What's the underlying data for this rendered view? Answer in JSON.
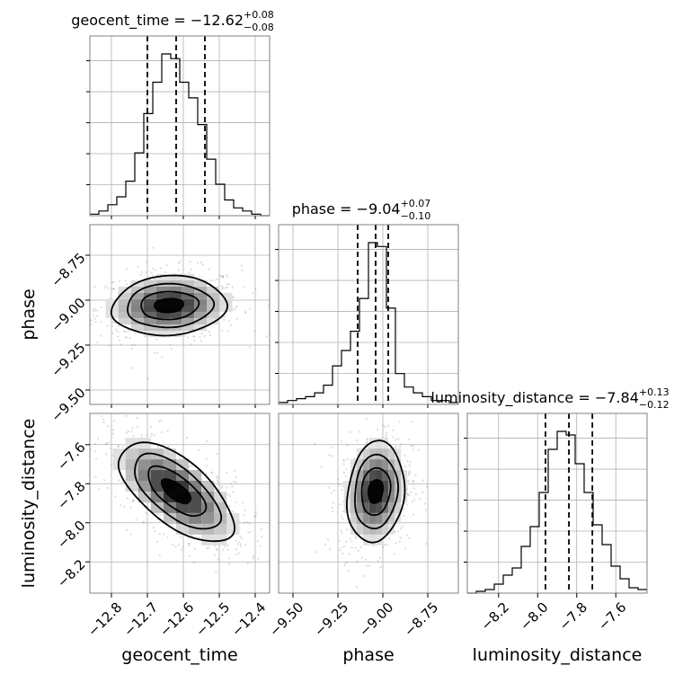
{
  "chart_data": {
    "type": "corner",
    "grid": true,
    "parameters": [
      "geocent_time",
      "phase",
      "luminosity_distance"
    ],
    "axis_labels": {
      "x": [
        "geocent_time",
        "phase",
        "luminosity_distance"
      ],
      "y": [
        "phase",
        "luminosity_distance"
      ]
    },
    "titles": [
      {
        "param": "geocent_time",
        "prefix": "geocent_time = ",
        "median": "−12.62",
        "plus": "+0.08",
        "minus": "−0.08"
      },
      {
        "param": "phase",
        "prefix": "phase = ",
        "median": "−9.04",
        "plus": "+0.07",
        "minus": "−0.10"
      },
      {
        "param": "luminosity_distance",
        "prefix": "luminosity_distance = ",
        "median": "−7.84",
        "plus": "+0.13",
        "minus": "−0.12"
      }
    ],
    "ranges": {
      "geocent_time": [
        -12.86,
        -12.36
      ],
      "phase": [
        -9.58,
        -8.58
      ],
      "luminosity_distance": [
        -8.36,
        -7.44
      ]
    },
    "ticks": {
      "geocent_time": {
        "values": [
          -12.8,
          -12.7,
          -12.6,
          -12.5,
          -12.4
        ],
        "labels": [
          "−12.8",
          "−12.7",
          "−12.6",
          "−12.5",
          "−12.4"
        ]
      },
      "phase_x": {
        "values": [
          -9.5,
          -9.25,
          -9.0,
          -8.75
        ],
        "labels": [
          "−9.50",
          "−9.25",
          "−9.00",
          "−8.75"
        ]
      },
      "phase_y": {
        "values": [
          -8.75,
          -9.0,
          -9.25,
          -9.5
        ],
        "labels": [
          "−8.75",
          "−9.00",
          "−9.25",
          "−9.50"
        ]
      },
      "luminosity_distance_x": {
        "values": [
          -8.2,
          -8.0,
          -7.8,
          -7.6
        ],
        "labels": [
          "−8.2",
          "−8.0",
          "−7.8",
          "−7.6"
        ]
      },
      "luminosity_distance_y": {
        "values": [
          -7.6,
          -7.8,
          -8.0,
          -8.2
        ],
        "labels": [
          "−7.6",
          "−7.8",
          "−8.0",
          "−8.2"
        ]
      }
    },
    "histograms": [
      {
        "param": "geocent_time",
        "bin_edges": [
          -12.86,
          -12.835,
          -12.81,
          -12.785,
          -12.76,
          -12.735,
          -12.71,
          -12.685,
          -12.66,
          -12.635,
          -12.61,
          -12.585,
          -12.56,
          -12.535,
          -12.51,
          -12.485,
          -12.46,
          -12.435,
          -12.41,
          -12.385,
          -12.36
        ],
        "counts": [
          1,
          3,
          7,
          12,
          22,
          40,
          65,
          85,
          103,
          100,
          85,
          75,
          58,
          36,
          20,
          10,
          5,
          3,
          1,
          0
        ],
        "quantiles": [
          -12.7,
          -12.62,
          -12.54
        ]
      },
      {
        "param": "phase",
        "bin_edges": [
          -9.58,
          -9.53,
          -9.48,
          -9.43,
          -9.38,
          -9.33,
          -9.28,
          -9.23,
          -9.18,
          -9.13,
          -9.08,
          -9.03,
          -8.98,
          -8.93,
          -8.88,
          -8.83,
          -8.78,
          -8.73,
          -8.68,
          -8.63,
          -8.58
        ],
        "counts": [
          1,
          2,
          3,
          4,
          6,
          10,
          20,
          28,
          38,
          55,
          84,
          82,
          50,
          16,
          9,
          6,
          4,
          2,
          2,
          1
        ],
        "quantiles": [
          -9.14,
          -9.04,
          -8.97
        ]
      },
      {
        "param": "luminosity_distance",
        "bin_edges": [
          -8.36,
          -8.314,
          -8.268,
          -8.222,
          -8.176,
          -8.13,
          -8.084,
          -8.038,
          -7.992,
          -7.946,
          -7.9,
          -7.854,
          -7.808,
          -7.762,
          -7.716,
          -7.67,
          -7.624,
          -7.578,
          -7.532,
          -7.486,
          -7.44
        ],
        "counts": [
          0,
          1,
          2,
          5,
          10,
          14,
          26,
          37,
          56,
          80,
          90,
          88,
          72,
          56,
          38,
          27,
          15,
          8,
          3,
          2
        ],
        "quantiles": [
          -7.96,
          -7.84,
          -7.72
        ]
      }
    ],
    "density_2d": [
      {
        "x": "geocent_time",
        "y": "phase",
        "center": [
          -12.64,
          -9.03
        ],
        "sigma": [
          0.08,
          0.08
        ],
        "correlation": 0.1
      },
      {
        "x": "geocent_time",
        "y": "luminosity_distance",
        "center": [
          -12.62,
          -7.84
        ],
        "sigma": [
          0.08,
          0.125
        ],
        "correlation": -0.65
      },
      {
        "x": "phase",
        "y": "luminosity_distance",
        "center": [
          -9.04,
          -7.84
        ],
        "sigma": [
          0.08,
          0.125
        ],
        "correlation": 0.15
      }
    ],
    "contour_levels": [
      0.5,
      1.0,
      1.5,
      2.0
    ],
    "colors": {
      "hist": "#000000",
      "quantile": "#000000",
      "grid": "#b0b0b0",
      "samples": "#808080",
      "contour": "#000000"
    }
  }
}
